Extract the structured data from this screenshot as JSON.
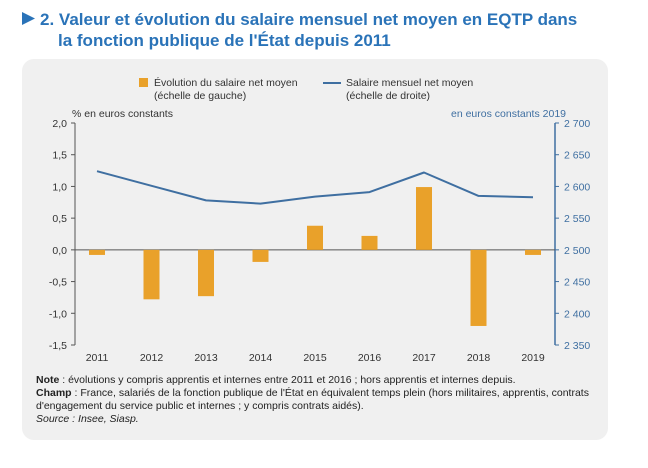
{
  "title": {
    "number": "2.",
    "line1": "Valeur et évolution du salaire mensuel net moyen en EQTP dans",
    "line2": "la fonction publique de l'État depuis 2011"
  },
  "notes": {
    "note_label": "Note",
    "note_text": " : évolutions y compris apprentis et internes entre 2011 et 2016 ; hors apprentis et internes depuis.",
    "champ_label": "Champ",
    "champ_text": " : France, salariés de la fonction publique de l'État en équivalent temps plein (hors militaires, apprentis, contrats d'engagement du service public et internes ; y compris contrats aidés).",
    "source": "Source : Insee, Siasp."
  },
  "colors": {
    "bar": "#e9a12a",
    "line": "#3f6fa1",
    "title": "#2a73b8",
    "panel": "#f0f0f0"
  },
  "chart_data": {
    "type": "bar+line",
    "categories": [
      "2011",
      "2012",
      "2013",
      "2014",
      "2015",
      "2016",
      "2017",
      "2018",
      "2019"
    ],
    "series": [
      {
        "name": "Évolution du salaire net moyen",
        "name_line2": "(échelle de gauche)",
        "type": "bar",
        "axis": "left",
        "values": [
          -0.08,
          -0.78,
          -0.73,
          -0.19,
          0.38,
          0.22,
          0.99,
          -1.2,
          -0.08
        ]
      },
      {
        "name": "Salaire mensuel net moyen",
        "name_line2": "(échelle de droite)",
        "type": "line",
        "axis": "right",
        "values": [
          2624,
          2601,
          2578,
          2573,
          2584,
          2591,
          2622,
          2585,
          2583
        ]
      }
    ],
    "left_axis": {
      "label": "% en euros constants",
      "ylim": [
        -1.5,
        2.0
      ],
      "ticks": [
        "-1,5",
        "-1,0",
        "-0,5",
        "0,0",
        "0,5",
        "1,0",
        "1,5",
        "2,0"
      ]
    },
    "right_axis": {
      "label": "en euros constants 2019",
      "ylim": [
        2350,
        2700
      ],
      "ticks": [
        "2 350",
        "2 400",
        "2 450",
        "2 500",
        "2 550",
        "2 600",
        "2 650",
        "2 700"
      ]
    },
    "grid": false,
    "legend": "top-center"
  }
}
